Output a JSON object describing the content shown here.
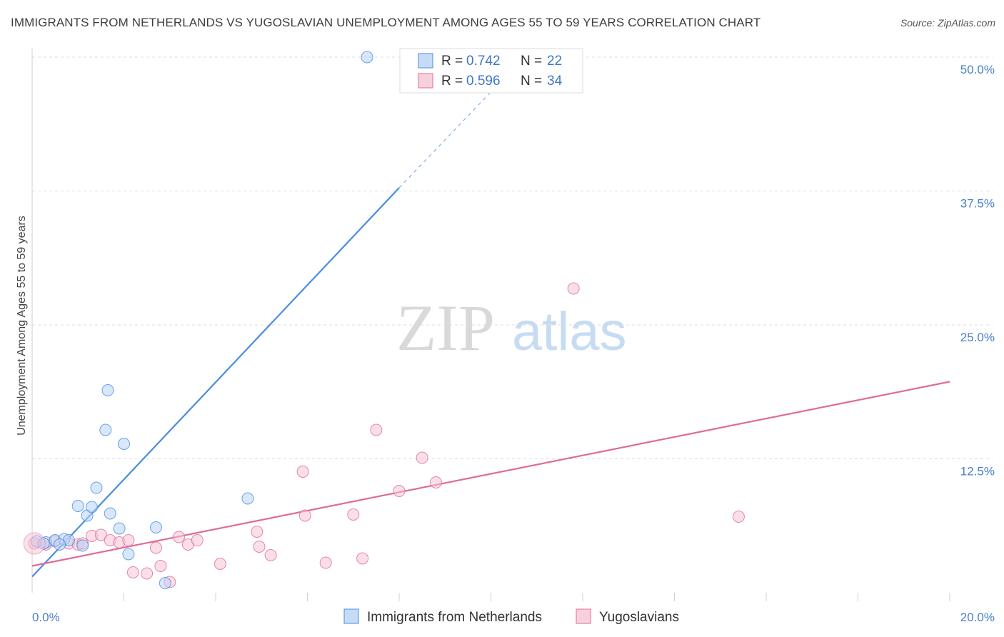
{
  "chart_data": {
    "type": "scatter",
    "title": "IMMIGRANTS FROM NETHERLANDS VS YUGOSLAVIAN UNEMPLOYMENT AMONG AGES 55 TO 59 YEARS CORRELATION CHART",
    "source": "Source: ZipAtlas.com",
    "xlabel": "",
    "ylabel": "Unemployment Among Ages 55 to 59 years",
    "xlim": [
      0,
      20
    ],
    "ylim": [
      0,
      50
    ],
    "x_tick_labels": [
      {
        "value": 0,
        "label": "0.0%"
      },
      {
        "value": 20,
        "label": "20.0%"
      }
    ],
    "y_tick_labels": [
      {
        "value": 50,
        "label": "50.0%"
      },
      {
        "value": 37.5,
        "label": "37.5%"
      },
      {
        "value": 25,
        "label": "25.0%"
      },
      {
        "value": 12.5,
        "label": "12.5%"
      }
    ],
    "watermark": {
      "zip": "ZIP",
      "atlas": "atlas"
    },
    "legend": {
      "position": "top-center",
      "r_label": "R =",
      "n_label": "N ="
    },
    "series": [
      {
        "name": "Immigrants from Netherlands",
        "color": "#4a8de0",
        "fill": "#b8d3f4",
        "r": "0.742",
        "n": "22",
        "trend": {
          "x": [
            0.0,
            8.0
          ],
          "y": [
            1.5,
            37.8
          ],
          "dashed_to": [
            10.5,
            49.0
          ]
        },
        "points": [
          {
            "x": 0.1,
            "y": 4.8
          },
          {
            "x": 0.3,
            "y": 4.7
          },
          {
            "x": 0.5,
            "y": 4.9
          },
          {
            "x": 0.7,
            "y": 5.0
          },
          {
            "x": 0.8,
            "y": 4.9
          },
          {
            "x": 1.0,
            "y": 8.1
          },
          {
            "x": 1.1,
            "y": 4.4
          },
          {
            "x": 1.2,
            "y": 7.2
          },
          {
            "x": 1.3,
            "y": 8.0
          },
          {
            "x": 1.4,
            "y": 9.8
          },
          {
            "x": 1.6,
            "y": 15.2
          },
          {
            "x": 1.65,
            "y": 18.9
          },
          {
            "x": 1.7,
            "y": 7.4
          },
          {
            "x": 1.9,
            "y": 6.0
          },
          {
            "x": 2.0,
            "y": 13.9
          },
          {
            "x": 2.1,
            "y": 3.6
          },
          {
            "x": 2.7,
            "y": 6.1
          },
          {
            "x": 2.9,
            "y": 0.9
          },
          {
            "x": 4.7,
            "y": 8.8
          },
          {
            "x": 7.3,
            "y": 50.0
          },
          {
            "x": 0.25,
            "y": 4.6
          },
          {
            "x": 0.6,
            "y": 4.5
          }
        ]
      },
      {
        "name": "Yugoslavians",
        "color": "#e06b96",
        "fill": "#f6c4d5",
        "r": "0.596",
        "n": "34",
        "trend": {
          "x": [
            0.0,
            20.0
          ],
          "y": [
            2.5,
            19.7
          ]
        },
        "points": [
          {
            "x": 0.05,
            "y": 4.6
          },
          {
            "x": 0.3,
            "y": 4.5
          },
          {
            "x": 0.5,
            "y": 4.8
          },
          {
            "x": 0.8,
            "y": 4.6
          },
          {
            "x": 1.0,
            "y": 4.5
          },
          {
            "x": 1.1,
            "y": 4.6
          },
          {
            "x": 1.3,
            "y": 5.3
          },
          {
            "x": 1.5,
            "y": 5.4
          },
          {
            "x": 1.7,
            "y": 4.9
          },
          {
            "x": 1.9,
            "y": 4.7
          },
          {
            "x": 2.1,
            "y": 4.9
          },
          {
            "x": 2.2,
            "y": 1.9
          },
          {
            "x": 2.5,
            "y": 1.8
          },
          {
            "x": 2.7,
            "y": 4.2
          },
          {
            "x": 2.8,
            "y": 2.5
          },
          {
            "x": 3.0,
            "y": 1.0
          },
          {
            "x": 3.2,
            "y": 5.2
          },
          {
            "x": 3.4,
            "y": 4.5
          },
          {
            "x": 3.6,
            "y": 4.9
          },
          {
            "x": 4.1,
            "y": 2.7
          },
          {
            "x": 4.9,
            "y": 5.7
          },
          {
            "x": 4.95,
            "y": 4.3
          },
          {
            "x": 5.2,
            "y": 3.5
          },
          {
            "x": 5.9,
            "y": 11.3
          },
          {
            "x": 5.95,
            "y": 7.2
          },
          {
            "x": 6.4,
            "y": 2.8
          },
          {
            "x": 7.0,
            "y": 7.3
          },
          {
            "x": 7.2,
            "y": 3.2
          },
          {
            "x": 7.5,
            "y": 15.2
          },
          {
            "x": 8.0,
            "y": 9.5
          },
          {
            "x": 8.5,
            "y": 12.6
          },
          {
            "x": 8.8,
            "y": 10.3
          },
          {
            "x": 11.8,
            "y": 28.4
          },
          {
            "x": 15.4,
            "y": 7.1
          }
        ]
      }
    ]
  }
}
